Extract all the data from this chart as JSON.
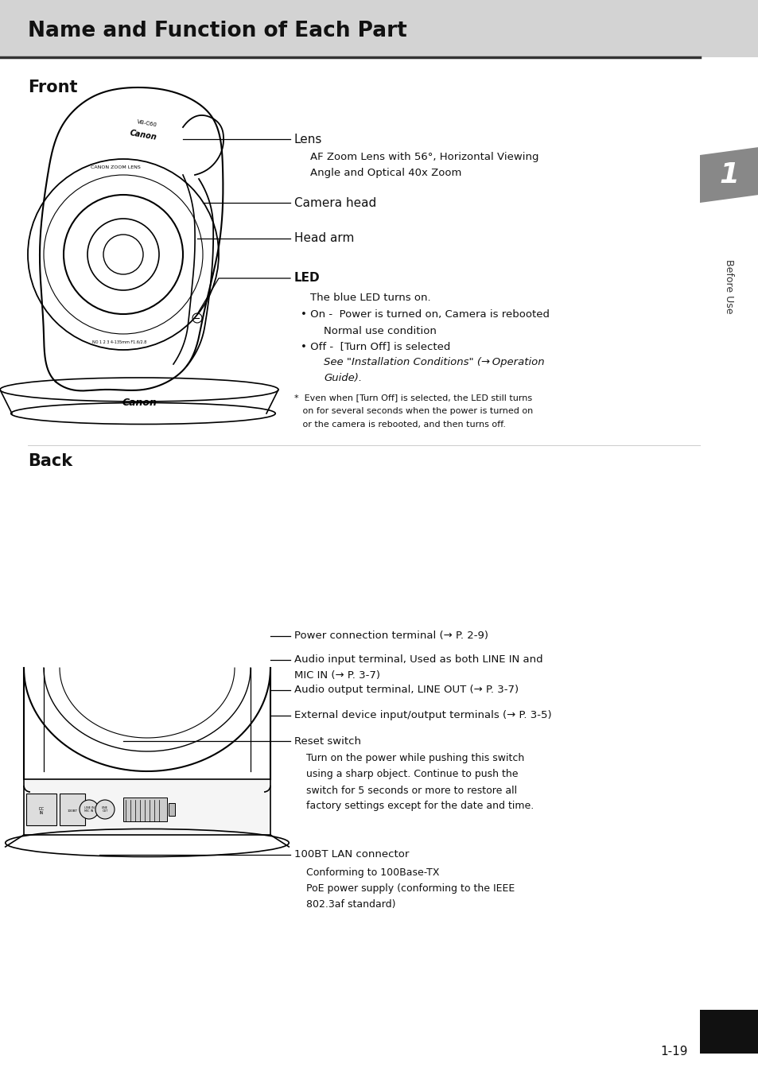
{
  "title": "Name and Function of Each Part",
  "title_bg": "#d3d3d3",
  "page_bg": "#ffffff",
  "section_front": "Front",
  "section_back": "Back",
  "sidebar_text": "Before Use",
  "sidebar_num": "1",
  "sidebar_bg": "#888888",
  "page_num": "1-19",
  "line_color": "#111111",
  "text_color": "#111111"
}
